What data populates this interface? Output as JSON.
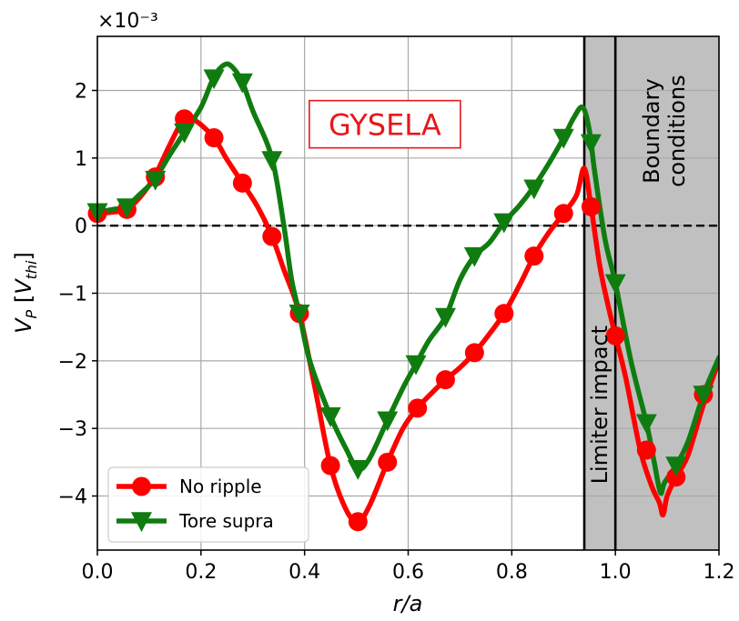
{
  "chart_data": {
    "type": "line",
    "xlim": [
      0.0,
      1.2
    ],
    "ylim": [
      -4.8,
      2.8
    ],
    "x_ticks": [
      0.0,
      0.2,
      0.4,
      0.6,
      0.8,
      1.0,
      1.2
    ],
    "x_tick_labels": [
      "0.0",
      "0.2",
      "0.4",
      "0.6",
      "0.8",
      "1.0",
      "1.2"
    ],
    "y_ticks": [
      2,
      1,
      0,
      -1,
      -2,
      -3,
      -4
    ],
    "y_tick_labels": [
      "2",
      "1",
      "0",
      "−1",
      "−2",
      "−3",
      "−4"
    ],
    "y_multiplier": "×10⁻³",
    "xlabel": "r/a",
    "ylabel": "V_P [V_thi]",
    "grid": true,
    "legend": "bottom-left",
    "zero_line": true,
    "annotation": {
      "text": "GYSELA",
      "color": "#e8161b",
      "x": 0.555,
      "y": 1.5
    },
    "shaded_region": {
      "from": 0.94,
      "to": 1.2,
      "color": "#c0c0c0"
    },
    "vlines": [
      0.94,
      1.0
    ],
    "region_labels": [
      {
        "lines": [
          "Limiter impact"
        ],
        "x": 0.97,
        "y_center": -2.65
      },
      {
        "lines": [
          "Boundary",
          "conditions"
        ],
        "x": 1.095,
        "y_center": 1.4
      }
    ],
    "series": [
      {
        "name": "No ripple",
        "color": "#ff0000",
        "marker": "circle",
        "line": [
          [
            0.0,
            0.18
          ],
          [
            0.03,
            0.2
          ],
          [
            0.055,
            0.24
          ],
          [
            0.08,
            0.4
          ],
          [
            0.11,
            0.72
          ],
          [
            0.14,
            1.2
          ],
          [
            0.168,
            1.58
          ],
          [
            0.19,
            1.55
          ],
          [
            0.225,
            1.3
          ],
          [
            0.25,
            0.98
          ],
          [
            0.28,
            0.63
          ],
          [
            0.31,
            0.27
          ],
          [
            0.337,
            -0.16
          ],
          [
            0.36,
            -0.65
          ],
          [
            0.39,
            -1.3
          ],
          [
            0.42,
            -2.4
          ],
          [
            0.45,
            -3.55
          ],
          [
            0.48,
            -4.2
          ],
          [
            0.503,
            -4.38
          ],
          [
            0.525,
            -4.15
          ],
          [
            0.56,
            -3.5
          ],
          [
            0.59,
            -3.0
          ],
          [
            0.618,
            -2.7
          ],
          [
            0.645,
            -2.48
          ],
          [
            0.672,
            -2.28
          ],
          [
            0.7,
            -2.1
          ],
          [
            0.728,
            -1.88
          ],
          [
            0.757,
            -1.6
          ],
          [
            0.785,
            -1.3
          ],
          [
            0.815,
            -0.88
          ],
          [
            0.843,
            -0.45
          ],
          [
            0.87,
            -0.12
          ],
          [
            0.9,
            0.18
          ],
          [
            0.925,
            0.45
          ],
          [
            0.94,
            0.85
          ],
          [
            0.953,
            0.28
          ],
          [
            0.97,
            -0.6
          ],
          [
            0.985,
            -1.15
          ],
          [
            1.0,
            -1.63
          ],
          [
            1.02,
            -2.25
          ],
          [
            1.048,
            -3.32
          ],
          [
            1.07,
            -3.85
          ],
          [
            1.085,
            -4.1
          ],
          [
            1.092,
            -4.28
          ],
          [
            1.1,
            -4.0
          ],
          [
            1.117,
            -3.72
          ],
          [
            1.14,
            -3.4
          ],
          [
            1.17,
            -2.65
          ],
          [
            1.2,
            -2.0
          ]
        ],
        "markers": [
          [
            0.0,
            0.18
          ],
          [
            0.057,
            0.24
          ],
          [
            0.112,
            0.72
          ],
          [
            0.168,
            1.58
          ],
          [
            0.225,
            1.3
          ],
          [
            0.28,
            0.63
          ],
          [
            0.337,
            -0.16
          ],
          [
            0.39,
            -1.3
          ],
          [
            0.45,
            -3.55
          ],
          [
            0.503,
            -4.38
          ],
          [
            0.56,
            -3.5
          ],
          [
            0.618,
            -2.7
          ],
          [
            0.672,
            -2.28
          ],
          [
            0.728,
            -1.88
          ],
          [
            0.785,
            -1.3
          ],
          [
            0.843,
            -0.45
          ],
          [
            0.9,
            0.18
          ],
          [
            0.953,
            0.28
          ],
          [
            1.0,
            -1.63
          ],
          [
            1.06,
            -3.32
          ],
          [
            1.117,
            -3.72
          ],
          [
            1.17,
            -2.5
          ]
        ]
      },
      {
        "name": "Tore supra",
        "color": "#107c10",
        "marker": "triangle-down",
        "line": [
          [
            0.0,
            0.2
          ],
          [
            0.03,
            0.24
          ],
          [
            0.055,
            0.28
          ],
          [
            0.08,
            0.45
          ],
          [
            0.11,
            0.68
          ],
          [
            0.14,
            1.05
          ],
          [
            0.168,
            1.38
          ],
          [
            0.2,
            1.75
          ],
          [
            0.225,
            2.2
          ],
          [
            0.245,
            2.38
          ],
          [
            0.26,
            2.35
          ],
          [
            0.28,
            2.12
          ],
          [
            0.3,
            1.7
          ],
          [
            0.337,
            1.0
          ],
          [
            0.36,
            0.0
          ],
          [
            0.375,
            -0.8
          ],
          [
            0.39,
            -1.3
          ],
          [
            0.41,
            -2.0
          ],
          [
            0.45,
            -2.82
          ],
          [
            0.48,
            -3.3
          ],
          [
            0.503,
            -3.6
          ],
          [
            0.525,
            -3.45
          ],
          [
            0.56,
            -2.88
          ],
          [
            0.59,
            -2.4
          ],
          [
            0.615,
            -2.05
          ],
          [
            0.64,
            -1.7
          ],
          [
            0.672,
            -1.35
          ],
          [
            0.7,
            -0.8
          ],
          [
            0.728,
            -0.45
          ],
          [
            0.757,
            -0.25
          ],
          [
            0.785,
            0.05
          ],
          [
            0.815,
            0.3
          ],
          [
            0.843,
            0.58
          ],
          [
            0.87,
            0.9
          ],
          [
            0.9,
            1.3
          ],
          [
            0.92,
            1.6
          ],
          [
            0.937,
            1.75
          ],
          [
            0.95,
            1.4
          ],
          [
            0.96,
            0.8
          ],
          [
            0.98,
            -0.2
          ],
          [
            1.0,
            -0.85
          ],
          [
            1.03,
            -2.0
          ],
          [
            1.06,
            -2.92
          ],
          [
            1.075,
            -3.5
          ],
          [
            1.087,
            -3.95
          ],
          [
            1.095,
            -3.8
          ],
          [
            1.117,
            -3.55
          ],
          [
            1.14,
            -3.2
          ],
          [
            1.17,
            -2.5
          ],
          [
            1.2,
            -1.95
          ]
        ],
        "markers": [
          [
            0.0,
            0.2
          ],
          [
            0.057,
            0.27
          ],
          [
            0.112,
            0.68
          ],
          [
            0.168,
            1.38
          ],
          [
            0.225,
            2.18
          ],
          [
            0.28,
            2.12
          ],
          [
            0.337,
            0.97
          ],
          [
            0.39,
            -1.3
          ],
          [
            0.45,
            -2.82
          ],
          [
            0.503,
            -3.6
          ],
          [
            0.56,
            -2.88
          ],
          [
            0.615,
            -2.05
          ],
          [
            0.672,
            -1.35
          ],
          [
            0.728,
            -0.45
          ],
          [
            0.785,
            0.05
          ],
          [
            0.843,
            0.55
          ],
          [
            0.9,
            1.3
          ],
          [
            0.953,
            1.22
          ],
          [
            1.0,
            -0.85
          ],
          [
            1.06,
            -2.92
          ],
          [
            1.117,
            -3.55
          ],
          [
            1.17,
            -2.5
          ]
        ]
      }
    ]
  }
}
